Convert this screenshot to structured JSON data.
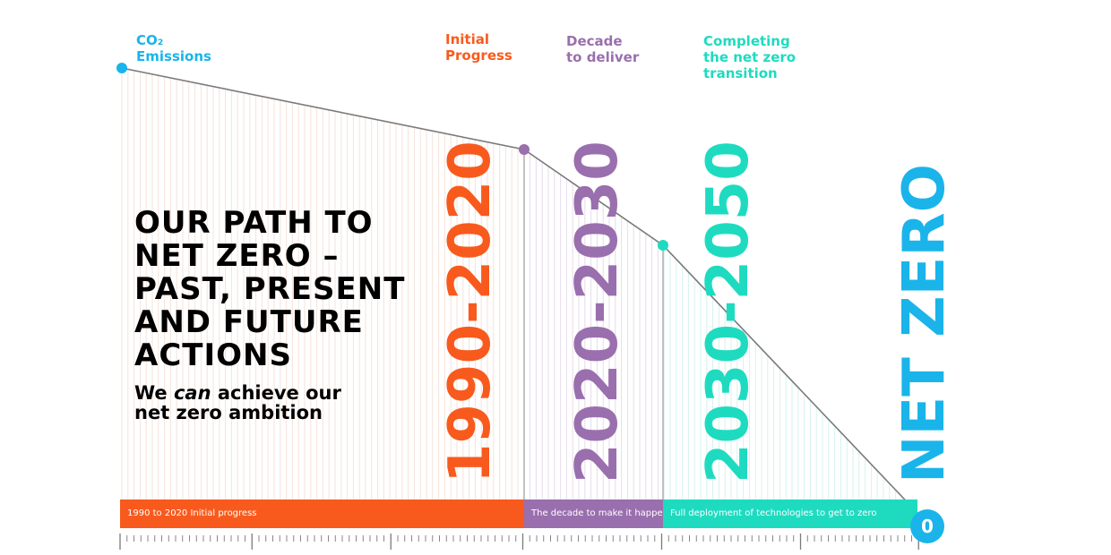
{
  "labels": {
    "co2_line1": "CO₂",
    "co2_line2": "Emissions",
    "initial_line1": "Initial",
    "initial_line2": "Progress",
    "decade_line1": "Decade",
    "decade_line2": "to deliver",
    "completing_line1": "Completing",
    "completing_line2": "the net zero",
    "completing_line3": "transition"
  },
  "title": {
    "line1": "OUR PATH TO",
    "line2": "NET ZERO –",
    "line3": "PAST, PRESENT",
    "line4": "AND FUTURE",
    "line5": "ACTIONS"
  },
  "subtitle": {
    "part1": "We ",
    "emphasis": "can",
    "part2": " achieve our",
    "line2": "net zero ambition"
  },
  "periods": {
    "p1": "1990-2020",
    "p2": "2020-2030",
    "p3": "2030-2050",
    "p4": "NET ZERO"
  },
  "bars": {
    "b1": "1990 to 2020 Initial progress",
    "b2": "The decade to make it happen",
    "b3": "Full deployment of technologies to get to zero"
  },
  "zero_label": "0",
  "colors": {
    "orange": "#f85a1e",
    "purple": "#9a6fae",
    "teal": "#1edbc0",
    "blue": "#1ab4ea",
    "line": "#8a8a8a"
  }
}
